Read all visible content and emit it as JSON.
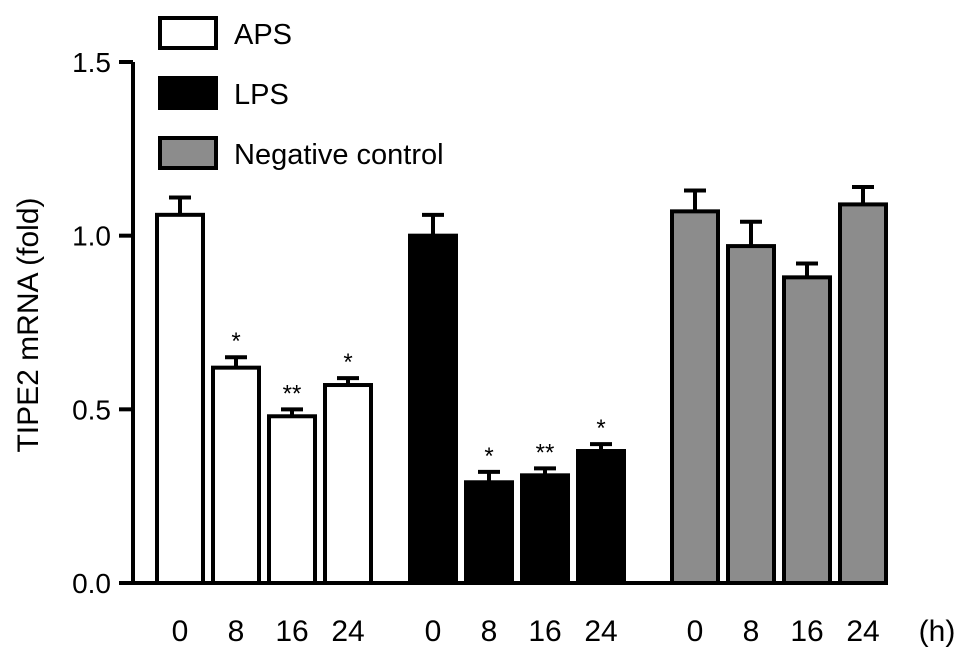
{
  "chart_data": {
    "type": "bar",
    "title": "",
    "xlabel": "",
    "x_unit": "(h)",
    "ylabel": "TIPE2 mRNA (fold)",
    "ylim": [
      0,
      1.5
    ],
    "yticks": [
      "0.0",
      "0.5",
      "1.0",
      "1.5"
    ],
    "grid": false,
    "legend_position": "top-left",
    "groups": [
      {
        "name": "APS",
        "color": "#ffffff",
        "categories": [
          "0",
          "8",
          "16",
          "24"
        ],
        "values": [
          1.06,
          0.62,
          0.48,
          0.57
        ],
        "errors": [
          0.05,
          0.03,
          0.02,
          0.02
        ],
        "significance": [
          "",
          "*",
          "**",
          "*"
        ]
      },
      {
        "name": "LPS",
        "color": "#000000",
        "categories": [
          "0",
          "8",
          "16",
          "24"
        ],
        "values": [
          1.0,
          0.29,
          0.31,
          0.38
        ],
        "errors": [
          0.06,
          0.03,
          0.02,
          0.02
        ],
        "significance": [
          "",
          "*",
          "**",
          "*"
        ]
      },
      {
        "name": "Negative control",
        "color": "#8c8c8c",
        "categories": [
          "0",
          "8",
          "16",
          "24"
        ],
        "values": [
          1.07,
          0.97,
          0.88,
          1.09
        ],
        "errors": [
          0.06,
          0.07,
          0.04,
          0.05
        ],
        "significance": [
          "",
          "",
          "",
          ""
        ]
      }
    ]
  }
}
